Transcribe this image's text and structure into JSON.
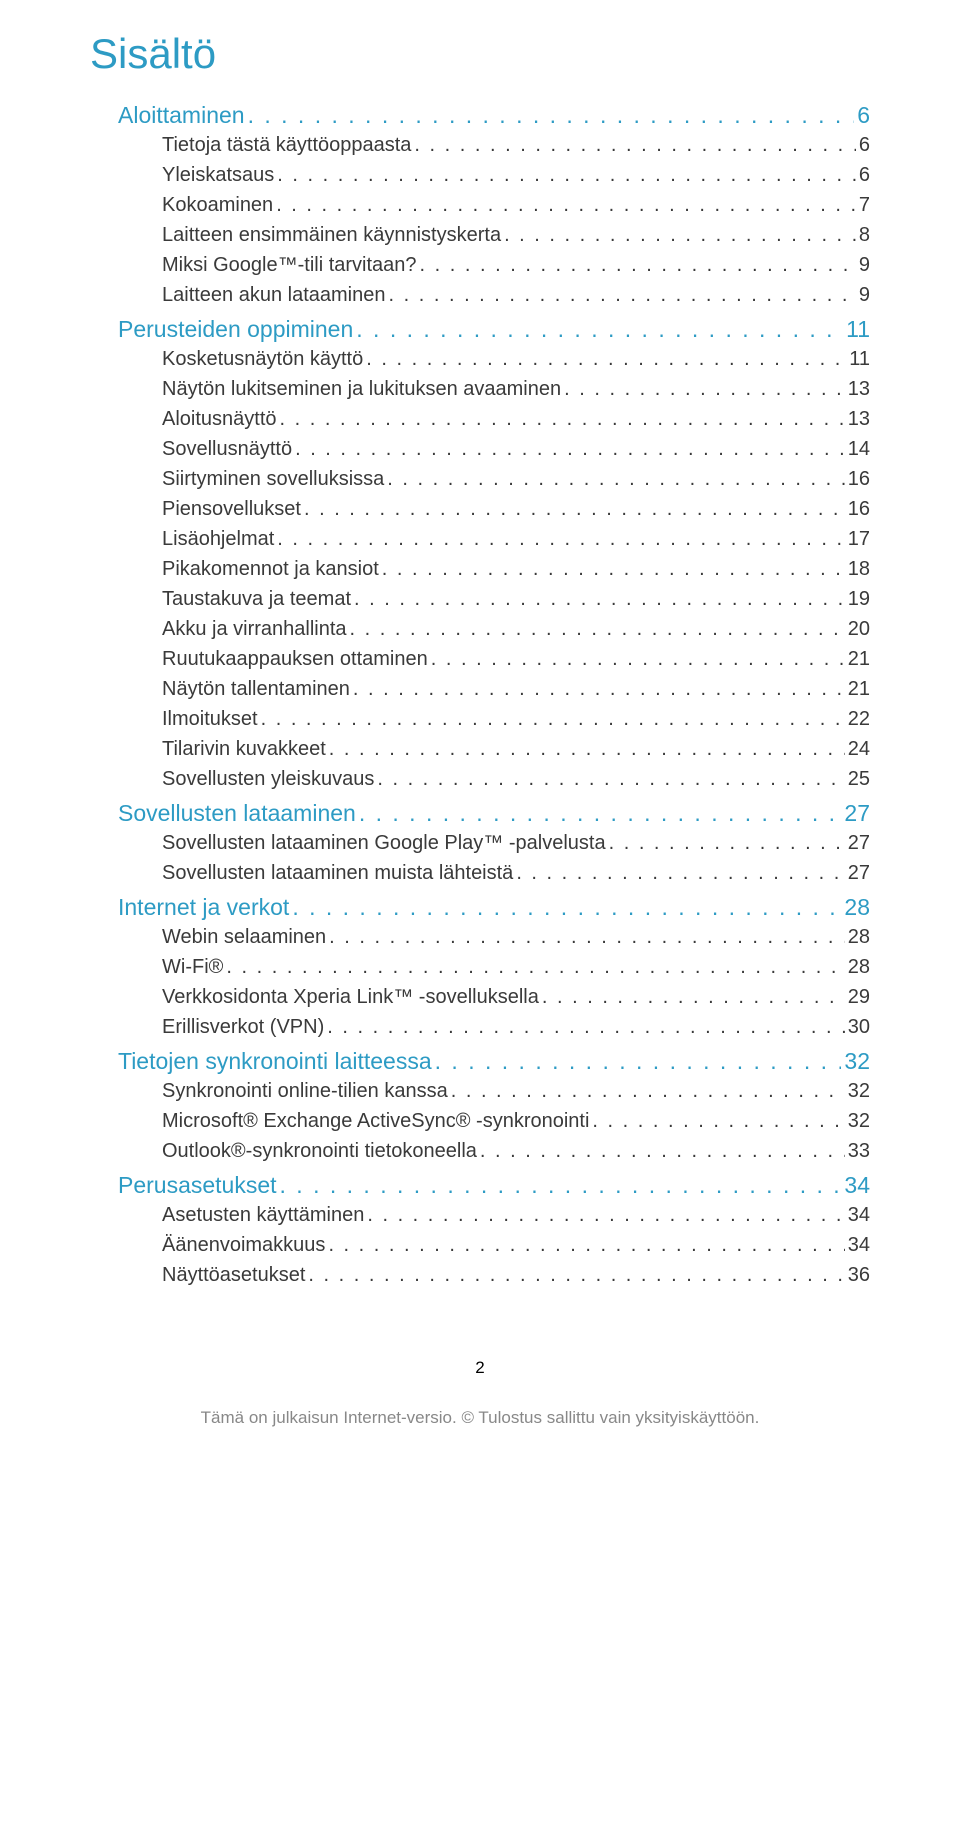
{
  "colors": {
    "heading": "#2d9bc4",
    "body": "#3a3a3a",
    "footer": "#848484"
  },
  "typography": {
    "title_fontsize": 42,
    "section_fontsize": 23,
    "entry_fontsize": 20,
    "footer_fontsize": 17
  },
  "title": "Sisältö",
  "sections": [
    {
      "label": "Aloittaminen",
      "page": "6",
      "entries": [
        {
          "label": "Tietoja tästä käyttöoppaasta",
          "page": "6"
        },
        {
          "label": "Yleiskatsaus",
          "page": "6"
        },
        {
          "label": "Kokoaminen",
          "page": "7"
        },
        {
          "label": "Laitteen ensimmäinen käynnistyskerta",
          "page": "8"
        },
        {
          "label": "Miksi Google™-tili tarvitaan?",
          "page": "9"
        },
        {
          "label": "Laitteen akun lataaminen",
          "page": "9"
        }
      ]
    },
    {
      "label": "Perusteiden oppiminen",
      "page": "11",
      "entries": [
        {
          "label": "Kosketusnäytön käyttö",
          "page": "11"
        },
        {
          "label": "Näytön lukitseminen ja lukituksen avaaminen",
          "page": "13"
        },
        {
          "label": "Aloitusnäyttö",
          "page": "13"
        },
        {
          "label": "Sovellusnäyttö",
          "page": "14"
        },
        {
          "label": "Siirtyminen sovelluksissa",
          "page": "16"
        },
        {
          "label": "Piensovellukset",
          "page": "16"
        },
        {
          "label": "Lisäohjelmat",
          "page": "17"
        },
        {
          "label": "Pikakomennot ja kansiot",
          "page": "18"
        },
        {
          "label": "Taustakuva ja teemat",
          "page": "19"
        },
        {
          "label": "Akku ja virranhallinta",
          "page": "20"
        },
        {
          "label": "Ruutukaappauksen ottaminen",
          "page": "21"
        },
        {
          "label": "Näytön tallentaminen",
          "page": "21"
        },
        {
          "label": "Ilmoitukset",
          "page": "22"
        },
        {
          "label": "Tilarivin kuvakkeet",
          "page": "24"
        },
        {
          "label": "Sovellusten yleiskuvaus",
          "page": "25"
        }
      ]
    },
    {
      "label": "Sovellusten lataaminen",
      "page": "27",
      "entries": [
        {
          "label": "Sovellusten lataaminen Google Play™ -palvelusta",
          "page": "27"
        },
        {
          "label": "Sovellusten lataaminen muista lähteistä",
          "page": "27"
        }
      ]
    },
    {
      "label": "Internet ja verkot",
      "page": "28",
      "entries": [
        {
          "label": "Webin selaaminen",
          "page": "28"
        },
        {
          "label": "Wi-Fi®",
          "page": "28"
        },
        {
          "label": "Verkkosidonta Xperia Link™ -sovelluksella",
          "page": "29"
        },
        {
          "label": "Erillisverkot (VPN)",
          "page": "30"
        }
      ]
    },
    {
      "label": "Tietojen synkronointi laitteessa",
      "page": "32",
      "entries": [
        {
          "label": "Synkronointi online-tilien kanssa",
          "page": "32"
        },
        {
          "label": "Microsoft® Exchange ActiveSync® -synkronointi",
          "page": "32"
        },
        {
          "label": "Outlook®-synkronointi tietokoneella",
          "page": "33"
        }
      ]
    },
    {
      "label": "Perusasetukset",
      "page": "34",
      "entries": [
        {
          "label": "Asetusten käyttäminen",
          "page": "34"
        },
        {
          "label": "Äänenvoimakkuus",
          "page": "34"
        },
        {
          "label": "Näyttöasetukset",
          "page": "36"
        }
      ]
    }
  ],
  "footer": {
    "page_number": "2",
    "text": "Tämä on julkaisun Internet-versio. © Tulostus sallittu vain yksityiskäyttöön."
  }
}
